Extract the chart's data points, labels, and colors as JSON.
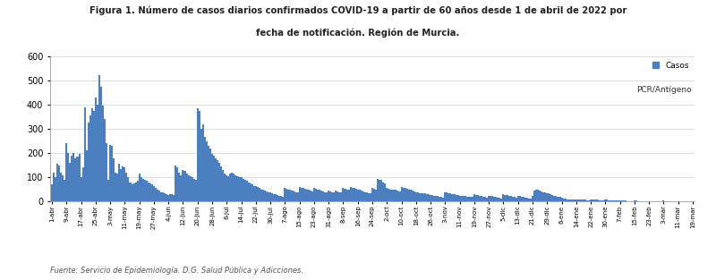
{
  "title_line1": "Figura 1. Número de casos diarios confirmados COVID-19 a partir de 60 años desde 1 de abril de 2022 por",
  "title_line2": "fecha de notificación. Región de Murcia.",
  "footer": "Fuente: Servicio de Epidemiología. D.G. Salud Pública y Adicciones.",
  "legend_label1": "Casos",
  "legend_label2": "PCR/Antígeno",
  "bar_color": "#4C7FC0",
  "ylim": [
    0,
    600
  ],
  "yticks": [
    0,
    100,
    200,
    300,
    400,
    500,
    600
  ],
  "xtick_labels": [
    "1-abr",
    "9-abr",
    "17-abr",
    "25-abr",
    "3-may",
    "11-may",
    "19-may",
    "27-may",
    "4-jun",
    "12-jun",
    "20-jun",
    "28-jun",
    "6-jul",
    "14-jul",
    "22-jul",
    "30-jul",
    "7-ago",
    "15-ago",
    "23-ago",
    "31-ago",
    "8-sep",
    "16-sep",
    "24-sep",
    "2-oct",
    "10-oct",
    "18-oct",
    "26-oct",
    "3-nov",
    "11-nov",
    "19-nov",
    "27-nov",
    "5-dic",
    "13-dic",
    "21-dic",
    "29-dic",
    "6-ene",
    "14-ene",
    "22-ene",
    "30-ene",
    "7-feb",
    "15-feb",
    "23-feb",
    "3-mar",
    "11-mar",
    "19-mar"
  ],
  "bar_values": [
    70,
    120,
    100,
    155,
    150,
    120,
    110,
    90,
    240,
    200,
    160,
    190,
    200,
    180,
    185,
    195,
    100,
    140,
    390,
    210,
    325,
    355,
    385,
    375,
    430,
    400,
    520,
    475,
    395,
    340,
    240,
    90,
    235,
    230,
    180,
    120,
    115,
    155,
    135,
    145,
    140,
    120,
    100,
    80,
    70,
    75,
    80,
    85,
    115,
    100,
    95,
    90,
    85,
    80,
    75,
    70,
    65,
    55,
    50,
    45,
    40,
    38,
    35,
    30,
    28,
    32,
    30,
    28,
    150,
    140,
    120,
    110,
    130,
    125,
    115,
    110,
    105,
    100,
    95,
    90,
    385,
    375,
    300,
    320,
    265,
    250,
    230,
    220,
    195,
    190,
    180,
    170,
    160,
    145,
    130,
    115,
    110,
    105,
    115,
    120,
    115,
    110,
    105,
    100,
    100,
    95,
    90,
    85,
    80,
    75,
    70,
    65,
    65,
    60,
    55,
    50,
    48,
    45,
    42,
    40,
    38,
    35,
    32,
    30,
    28,
    25,
    22,
    20,
    55,
    52,
    50,
    48,
    45,
    42,
    40,
    38,
    60,
    58,
    55,
    52,
    50,
    48,
    45,
    42,
    55,
    52,
    50,
    48,
    45,
    42,
    40,
    38,
    45,
    42,
    40,
    38,
    45,
    42,
    40,
    38,
    55,
    52,
    50,
    48,
    60,
    58,
    55,
    52,
    50,
    48,
    45,
    42,
    40,
    38,
    36,
    34,
    55,
    52,
    50,
    95,
    90,
    88,
    80,
    75,
    55,
    52,
    50,
    48,
    50,
    48,
    45,
    42,
    60,
    58,
    55,
    52,
    50,
    48,
    45,
    42,
    40,
    38,
    36,
    34,
    35,
    33,
    31,
    30,
    28,
    26,
    25,
    23,
    22,
    20,
    18,
    16,
    40,
    38,
    36,
    34,
    32,
    30,
    28,
    26,
    25,
    24,
    23,
    22,
    21,
    20,
    19,
    18,
    30,
    28,
    26,
    24,
    22,
    20,
    18,
    16,
    25,
    24,
    22,
    20,
    18,
    16,
    15,
    14,
    30,
    28,
    26,
    24,
    22,
    20,
    18,
    16,
    25,
    23,
    21,
    19,
    17,
    15,
    14,
    12,
    25,
    45,
    50,
    48,
    45,
    42,
    40,
    38,
    35,
    33,
    30,
    28,
    25,
    22,
    20,
    18,
    15,
    13,
    12,
    10,
    9,
    8,
    8,
    7,
    10,
    9,
    8,
    8,
    7,
    7,
    6,
    6,
    10,
    9,
    8,
    7,
    7,
    6,
    6,
    5,
    8,
    7,
    6,
    6,
    5,
    5,
    4,
    4,
    5,
    5,
    4,
    4,
    3,
    3,
    3,
    2,
    4,
    4,
    3,
    3,
    3,
    2,
    2,
    2,
    3,
    3,
    2,
    2,
    2,
    2,
    2,
    2,
    4,
    3,
    3,
    2,
    2,
    2,
    2,
    2,
    3,
    3,
    2,
    2,
    2,
    2,
    2,
    2,
    2
  ],
  "tick_day_indices": [
    0,
    8,
    16,
    24,
    32,
    40,
    48,
    56,
    64,
    72,
    80,
    88,
    96,
    104,
    112,
    120,
    128,
    136,
    144,
    152,
    160,
    168,
    176,
    184,
    192,
    200,
    208,
    216,
    224,
    232,
    240,
    248,
    256,
    264,
    272,
    280,
    288,
    296,
    304,
    312,
    320,
    328,
    336,
    344,
    352
  ]
}
